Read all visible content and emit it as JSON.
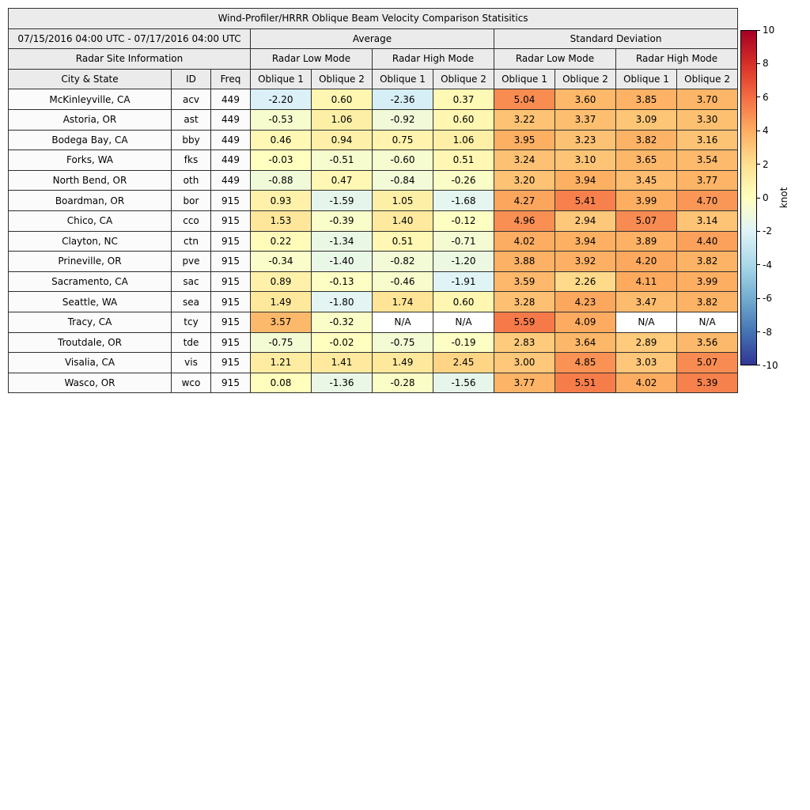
{
  "chart_data": {
    "type": "heatmap",
    "title": "Wind-Profiler/HRRR Oblique Beam Velocity Comparison Statisitics",
    "date_range": "07/15/2016 04:00 UTC - 07/17/2016 04:00 UTC",
    "group_headers": {
      "average": "Average",
      "standard_deviation": "Standard Deviation",
      "radar_site_information": "Radar Site Information",
      "radar_low_mode": "Radar Low Mode",
      "radar_high_mode": "Radar High Mode"
    },
    "columns": [
      "City & State",
      "ID",
      "Freq",
      "Oblique 1",
      "Oblique 2",
      "Oblique 1",
      "Oblique 2",
      "Oblique 1",
      "Oblique 2",
      "Oblique 1",
      "Oblique 2"
    ],
    "rows": [
      {
        "city": "McKinleyville, CA",
        "id": "acv",
        "freq": "449",
        "values": [
          "-2.20",
          "0.60",
          "-2.36",
          "0.37",
          "5.04",
          "3.60",
          "3.85",
          "3.70"
        ]
      },
      {
        "city": "Astoria, OR",
        "id": "ast",
        "freq": "449",
        "values": [
          "-0.53",
          "1.06",
          "-0.92",
          "0.60",
          "3.22",
          "3.37",
          "3.09",
          "3.30"
        ]
      },
      {
        "city": "Bodega Bay, CA",
        "id": "bby",
        "freq": "449",
        "values": [
          "0.46",
          "0.94",
          "0.75",
          "1.06",
          "3.95",
          "3.23",
          "3.82",
          "3.16"
        ]
      },
      {
        "city": "Forks, WA",
        "id": "fks",
        "freq": "449",
        "values": [
          "-0.03",
          "-0.51",
          "-0.60",
          "0.51",
          "3.24",
          "3.10",
          "3.65",
          "3.54"
        ]
      },
      {
        "city": "North Bend, OR",
        "id": "oth",
        "freq": "449",
        "values": [
          "-0.88",
          "0.47",
          "-0.84",
          "-0.26",
          "3.20",
          "3.94",
          "3.45",
          "3.77"
        ]
      },
      {
        "city": "Boardman, OR",
        "id": "bor",
        "freq": "915",
        "values": [
          "0.93",
          "-1.59",
          "1.05",
          "-1.68",
          "4.27",
          "5.41",
          "3.99",
          "4.70"
        ]
      },
      {
        "city": "Chico, CA",
        "id": "cco",
        "freq": "915",
        "values": [
          "1.53",
          "-0.39",
          "1.40",
          "-0.12",
          "4.96",
          "2.94",
          "5.07",
          "3.14"
        ]
      },
      {
        "city": "Clayton, NC",
        "id": "ctn",
        "freq": "915",
        "values": [
          "0.22",
          "-1.34",
          "0.51",
          "-0.71",
          "4.02",
          "3.94",
          "3.89",
          "4.40"
        ]
      },
      {
        "city": "Prineville, OR",
        "id": "pve",
        "freq": "915",
        "values": [
          "-0.34",
          "-1.40",
          "-0.82",
          "-1.20",
          "3.88",
          "3.92",
          "4.20",
          "3.82"
        ]
      },
      {
        "city": "Sacramento, CA",
        "id": "sac",
        "freq": "915",
        "values": [
          "0.89",
          "-0.13",
          "-0.46",
          "-1.91",
          "3.59",
          "2.26",
          "4.11",
          "3.99"
        ]
      },
      {
        "city": "Seattle, WA",
        "id": "sea",
        "freq": "915",
        "values": [
          "1.49",
          "-1.80",
          "1.74",
          "0.60",
          "3.28",
          "4.23",
          "3.47",
          "3.82"
        ]
      },
      {
        "city": "Tracy, CA",
        "id": "tcy",
        "freq": "915",
        "values": [
          "3.57",
          "-0.32",
          "N/A",
          "N/A",
          "5.59",
          "4.09",
          "N/A",
          "N/A"
        ]
      },
      {
        "city": "Troutdale, OR",
        "id": "tde",
        "freq": "915",
        "values": [
          "-0.75",
          "-0.02",
          "-0.75",
          "-0.19",
          "2.83",
          "3.64",
          "2.89",
          "3.56"
        ]
      },
      {
        "city": "Visalia, CA",
        "id": "vis",
        "freq": "915",
        "values": [
          "1.21",
          "1.41",
          "1.49",
          "2.45",
          "3.00",
          "4.85",
          "3.03",
          "5.07"
        ]
      },
      {
        "city": "Wasco, OR",
        "id": "wco",
        "freq": "915",
        "values": [
          "0.08",
          "-1.36",
          "-0.28",
          "-1.56",
          "3.77",
          "5.51",
          "4.02",
          "5.39"
        ]
      }
    ],
    "na_text": "N/A",
    "colorbar": {
      "label": "knot",
      "min": -10,
      "max": 10,
      "ticks": [
        10,
        8,
        6,
        4,
        2,
        0,
        -2,
        -4,
        -6,
        -8,
        -10
      ],
      "colors": [
        "#313695",
        "#4575b4",
        "#74add1",
        "#abd9e9",
        "#e0f3f8",
        "#ffffbf",
        "#fee090",
        "#fdae61",
        "#f46d43",
        "#d73027",
        "#a50026"
      ]
    },
    "style": {
      "header_bg": "#ebebeb",
      "label_cell_bg": "#fbfbfb",
      "border_color": "#2f2f2f",
      "na_bg": "#ffffff"
    }
  }
}
